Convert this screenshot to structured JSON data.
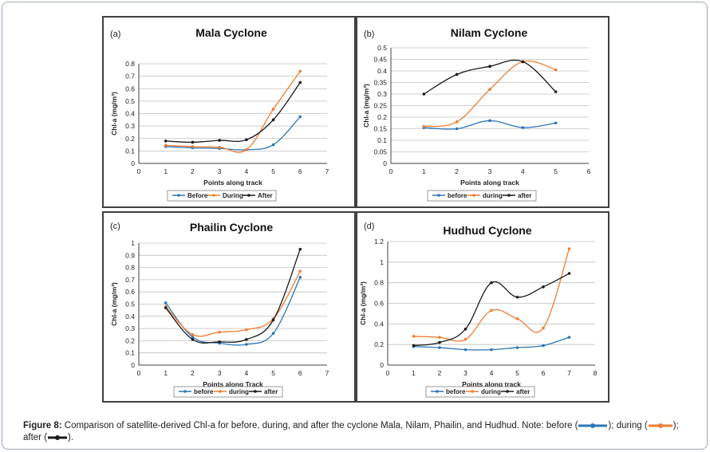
{
  "colors": {
    "before": "#2e75b6",
    "during": "#ed7d31",
    "after": "#1a1a1a",
    "grid": "#bfbfbf",
    "axis": "#404040"
  },
  "chart_data": [
    {
      "type": "line",
      "panel_label": "(a)",
      "title": "Mala Cyclone",
      "xlabel": "Points along track",
      "ylabel": "Chl-a (mg/m³)",
      "xlim": [
        0,
        7
      ],
      "ylim": [
        0,
        0.8
      ],
      "xticks": [
        "0",
        "1",
        "2",
        "3",
        "4",
        "5",
        "6",
        "7"
      ],
      "yticks": [
        "0",
        "0.1",
        "0.2",
        "0.3",
        "0.4",
        "0.5",
        "0.6",
        "0.7",
        "0.8"
      ],
      "legend_position": "bottom",
      "series": [
        {
          "key": "before",
          "name": "Before",
          "x": [
            1,
            2,
            3,
            4,
            5,
            6
          ],
          "values": [
            0.135,
            0.125,
            0.12,
            0.11,
            0.15,
            0.375
          ]
        },
        {
          "key": "during",
          "name": "During",
          "x": [
            1,
            2,
            3,
            4,
            5,
            6
          ],
          "values": [
            0.145,
            0.135,
            0.13,
            0.11,
            0.435,
            0.74
          ]
        },
        {
          "key": "after",
          "name": "After",
          "x": [
            1,
            2,
            3,
            4,
            5,
            6
          ],
          "values": [
            0.18,
            0.17,
            0.185,
            0.19,
            0.35,
            0.65
          ]
        }
      ]
    },
    {
      "type": "line",
      "panel_label": "(b)",
      "title": "Nilam Cyclone",
      "xlabel": "Points along track",
      "ylabel": "Chl-a (mg/m³)",
      "xlim": [
        0,
        6
      ],
      "ylim": [
        0,
        0.5
      ],
      "xticks": [
        "0",
        "1",
        "2",
        "3",
        "4",
        "5",
        "6"
      ],
      "yticks": [
        "0",
        "0.05",
        "0.1",
        "0.15",
        "0.2",
        "0.25",
        "0.3",
        "0.35",
        "0.4",
        "0.45",
        "0.5"
      ],
      "legend_position": "bottom",
      "series": [
        {
          "key": "before",
          "name": "before",
          "x": [
            1,
            2,
            3,
            4,
            5
          ],
          "values": [
            0.155,
            0.15,
            0.185,
            0.155,
            0.175
          ]
        },
        {
          "key": "during",
          "name": "during",
          "x": [
            1,
            2,
            3,
            4,
            5
          ],
          "values": [
            0.16,
            0.18,
            0.32,
            0.44,
            0.405
          ]
        },
        {
          "key": "after",
          "name": "after",
          "x": [
            1,
            2,
            3,
            4,
            5
          ],
          "values": [
            0.3,
            0.385,
            0.42,
            0.44,
            0.31
          ]
        }
      ]
    },
    {
      "type": "line",
      "panel_label": "(c)",
      "title": "Phailin Cyclone",
      "xlabel": "Points along Track",
      "ylabel": "Chl-a (mg/m³)",
      "xlim": [
        0,
        7
      ],
      "ylim": [
        0,
        1
      ],
      "xticks": [
        "0",
        "1",
        "2",
        "3",
        "4",
        "5",
        "6",
        "7"
      ],
      "yticks": [
        "0",
        "0.1",
        "0.2",
        "0.3",
        "0.4",
        "0.5",
        "0.6",
        "0.7",
        "0.8",
        "0.9",
        "1"
      ],
      "legend_position": "bottom",
      "series": [
        {
          "key": "before",
          "name": "before",
          "x": [
            1,
            2,
            3,
            4,
            5,
            6
          ],
          "values": [
            0.51,
            0.23,
            0.18,
            0.17,
            0.26,
            0.72
          ]
        },
        {
          "key": "during",
          "name": "during",
          "x": [
            1,
            2,
            3,
            4,
            5,
            6
          ],
          "values": [
            0.48,
            0.25,
            0.27,
            0.29,
            0.38,
            0.77
          ]
        },
        {
          "key": "after",
          "name": "after",
          "x": [
            1,
            2,
            3,
            4,
            5,
            6
          ],
          "values": [
            0.47,
            0.21,
            0.19,
            0.21,
            0.37,
            0.95
          ]
        }
      ]
    },
    {
      "type": "line",
      "panel_label": "(d)",
      "title": "Hudhud Cyclone",
      "xlabel": "Points along track",
      "ylabel": "Chl-a (mg/m³)",
      "xlim": [
        0,
        8
      ],
      "ylim": [
        0,
        1.2
      ],
      "xticks": [
        "0",
        "1",
        "2",
        "3",
        "4",
        "5",
        "6",
        "7",
        "8"
      ],
      "yticks": [
        "0",
        "0.2",
        "0.4",
        "0.6",
        "0.8",
        "1",
        "1.2"
      ],
      "legend_position": "bottom",
      "series": [
        {
          "key": "before",
          "name": "before",
          "x": [
            1,
            2,
            3,
            4,
            5,
            6,
            7
          ],
          "values": [
            0.18,
            0.17,
            0.15,
            0.15,
            0.17,
            0.19,
            0.27
          ]
        },
        {
          "key": "during",
          "name": "during",
          "x": [
            1,
            2,
            3,
            4,
            5,
            6,
            7
          ],
          "values": [
            0.28,
            0.27,
            0.25,
            0.53,
            0.45,
            0.36,
            1.13
          ]
        },
        {
          "key": "after",
          "name": "after",
          "x": [
            1,
            2,
            3,
            4,
            5,
            6,
            7
          ],
          "values": [
            0.19,
            0.22,
            0.35,
            0.8,
            0.66,
            0.76,
            0.89
          ]
        }
      ]
    }
  ],
  "caption": {
    "label": "Figure 8:",
    "text": " Comparison of satellite-derived Chl-a  for before, during, and after the cyclone Mala, Nilam, Phailin, and Hudhud. Note: before (",
    "during_prefix": "); during (",
    "after_prefix": "); after (",
    "end": ")."
  }
}
